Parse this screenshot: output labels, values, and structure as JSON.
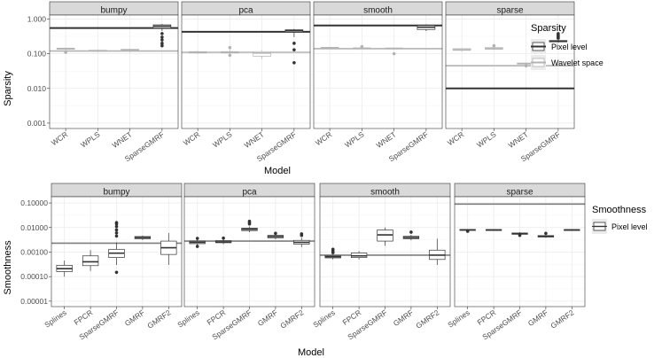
{
  "chart_data": [
    {
      "type": "box",
      "name": "sparsity",
      "ylabel": "Sparsity",
      "xlabel": "Model",
      "yscale": "log10",
      "ylim": [
        0.0007,
        1.3
      ],
      "yticks": [
        0.001,
        0.01,
        0.1,
        1
      ],
      "ytick_labels": [
        "0.001",
        "0.010",
        "0.100",
        "1.000"
      ],
      "categories": [
        "WCR",
        "WPLS",
        "WNET",
        "SparseGMRF"
      ],
      "legend": {
        "title": "Sparsity",
        "entries": [
          {
            "label": "Pixel level",
            "color": "#333333"
          },
          {
            "label": "Wavelet space",
            "color": "#b3b3b3"
          }
        ]
      },
      "panels": [
        {
          "title": "bumpy",
          "ref_lines": {
            "pixel": 0.55,
            "wavelet": 0.12
          },
          "boxes": [
            {
              "q1": 0.135,
              "median": 0.14,
              "q3": 0.145,
              "lo": 0.13,
              "hi": 0.15,
              "outliers": [
                0.11,
                0.115
              ],
              "style": "wavelet"
            },
            {
              "q1": 0.118,
              "median": 0.122,
              "q3": 0.126,
              "lo": 0.112,
              "hi": 0.13,
              "outliers": [],
              "style": "wavelet"
            },
            {
              "q1": 0.12,
              "median": 0.125,
              "q3": 0.135,
              "lo": 0.11,
              "hi": 0.14,
              "outliers": [],
              "style": "wavelet"
            },
            {
              "q1": 0.55,
              "median": 0.62,
              "q3": 0.68,
              "lo": 0.45,
              "hi": 0.72,
              "outliers": [
                0.38,
                0.3,
                0.25,
                0.2,
                0.17
              ],
              "style": "pixel"
            }
          ]
        },
        {
          "title": "pca",
          "ref_lines": {
            "pixel": 0.43,
            "wavelet": 0.11
          },
          "boxes": [
            {
              "q1": 0.105,
              "median": 0.11,
              "q3": 0.115,
              "lo": 0.1,
              "hi": 0.12,
              "outliers": [],
              "style": "wavelet"
            },
            {
              "q1": 0.105,
              "median": 0.11,
              "q3": 0.115,
              "lo": 0.1,
              "hi": 0.13,
              "outliers": [
                0.15,
                0.09
              ],
              "style": "wavelet"
            },
            {
              "q1": 0.085,
              "median": 0.105,
              "q3": 0.115,
              "lo": 0.07,
              "hi": 0.125,
              "outliers": [],
              "style": "wavelet"
            },
            {
              "q1": 0.42,
              "median": 0.46,
              "q3": 0.49,
              "lo": 0.3,
              "hi": 0.52,
              "outliers": [
                0.2,
                0.13,
                0.055
              ],
              "style": "pixel"
            }
          ]
        },
        {
          "title": "smooth",
          "ref_lines": {
            "pixel": 0.65,
            "wavelet": 0.14
          },
          "boxes": [
            {
              "q1": 0.145,
              "median": 0.148,
              "q3": 0.152,
              "lo": 0.14,
              "hi": 0.155,
              "outliers": [],
              "style": "wavelet"
            },
            {
              "q1": 0.14,
              "median": 0.143,
              "q3": 0.147,
              "lo": 0.135,
              "hi": 0.15,
              "outliers": [
                0.16
              ],
              "style": "wavelet"
            },
            {
              "q1": 0.138,
              "median": 0.142,
              "q3": 0.146,
              "lo": 0.13,
              "hi": 0.15,
              "outliers": [
                0.1
              ],
              "style": "wavelet"
            },
            {
              "q1": 0.5,
              "median": 0.58,
              "q3": 0.65,
              "lo": 0.45,
              "hi": 0.7,
              "outliers": [],
              "style": "pixel"
            }
          ]
        },
        {
          "title": "sparse",
          "ref_lines": {
            "pixel": 0.01,
            "wavelet": 0.045
          },
          "boxes": [
            {
              "q1": 0.125,
              "median": 0.13,
              "q3": 0.14,
              "lo": 0.115,
              "hi": 0.145,
              "outliers": [],
              "style": "wavelet"
            },
            {
              "q1": 0.135,
              "median": 0.14,
              "q3": 0.15,
              "lo": 0.13,
              "hi": 0.155,
              "outliers": [
                0.17
              ],
              "style": "wavelet"
            },
            {
              "q1": 0.05,
              "median": 0.052,
              "q3": 0.054,
              "lo": 0.048,
              "hi": 0.056,
              "outliers": [
                0.045
              ],
              "style": "wavelet"
            },
            {
              "q1": 0.22,
              "median": 0.23,
              "q3": 0.24,
              "lo": 0.21,
              "hi": 0.25,
              "outliers": [
                0.28,
                0.3,
                0.32,
                0.35,
                0.38
              ],
              "style": "pixel"
            }
          ]
        }
      ]
    },
    {
      "type": "box",
      "name": "smoothness",
      "ylabel": "Smoothness",
      "xlabel": "Model",
      "yscale": "log10",
      "ylim": [
        6e-06,
        0.18
      ],
      "yticks": [
        1e-05,
        0.0001,
        0.001,
        0.01,
        0.1
      ],
      "ytick_labels": [
        "0.00001",
        "0.00010",
        "0.00100",
        "0.01000",
        "0.10000"
      ],
      "categories": [
        "Splines",
        "FPCR",
        "SparseGMRF",
        "GMRF",
        "GMRF2"
      ],
      "legend": {
        "title": "Smoothness",
        "entries": [
          {
            "label": "Pixel level",
            "color": "#ffffff"
          }
        ]
      },
      "panels": [
        {
          "title": "bumpy",
          "ref_line": 0.0023,
          "boxes": [
            {
              "q1": 0.00016,
              "median": 0.00021,
              "q3": 0.00029,
              "lo": 0.0001,
              "hi": 0.00045,
              "outliers": []
            },
            {
              "q1": 0.00028,
              "median": 0.0004,
              "q3": 0.0007,
              "lo": 0.00017,
              "hi": 0.0012,
              "outliers": []
            },
            {
              "q1": 0.0006,
              "median": 0.0009,
              "q3": 0.0013,
              "lo": 0.0003,
              "hi": 0.0025,
              "outliers": [
                0.0045,
                0.006,
                0.008,
                0.011,
                0.014,
                0.016,
                0.00015
              ]
            },
            {
              "q1": 0.0035,
              "median": 0.0039,
              "q3": 0.0043,
              "lo": 0.0031,
              "hi": 0.0047,
              "outliers": []
            },
            {
              "q1": 0.0008,
              "median": 0.0015,
              "q3": 0.0028,
              "lo": 0.0003,
              "hi": 0.006,
              "outliers": []
            }
          ]
        },
        {
          "title": "pca",
          "ref_line": 0.0028,
          "boxes": [
            {
              "q1": 0.0022,
              "median": 0.0025,
              "q3": 0.0028,
              "lo": 0.0019,
              "hi": 0.0032,
              "outliers": [
                0.0036,
                0.0017
              ]
            },
            {
              "q1": 0.0024,
              "median": 0.0026,
              "q3": 0.0029,
              "lo": 0.0021,
              "hi": 0.0032,
              "outliers": [
                0.0037
              ]
            },
            {
              "q1": 0.0075,
              "median": 0.0085,
              "q3": 0.0095,
              "lo": 0.0065,
              "hi": 0.011,
              "outliers": [
                0.014,
                0.016,
                0.018
              ]
            },
            {
              "q1": 0.0038,
              "median": 0.0043,
              "q3": 0.0048,
              "lo": 0.0033,
              "hi": 0.0054,
              "outliers": [
                0.0058
              ]
            },
            {
              "q1": 0.0021,
              "median": 0.0025,
              "q3": 0.003,
              "lo": 0.0016,
              "hi": 0.0038,
              "outliers": [
                0.0048,
                0.0055
              ]
            }
          ]
        },
        {
          "title": "smooth",
          "ref_line": 0.00075,
          "boxes": [
            {
              "q1": 0.00058,
              "median": 0.00065,
              "q3": 0.00072,
              "lo": 0.0005,
              "hi": 0.0008,
              "outliers": [
                0.00095,
                0.0011,
                0.0013
              ]
            },
            {
              "q1": 0.0006,
              "median": 0.0007,
              "q3": 0.00092,
              "lo": 0.0005,
              "hi": 0.0011,
              "outliers": []
            },
            {
              "q1": 0.0028,
              "median": 0.005,
              "q3": 0.008,
              "lo": 0.0018,
              "hi": 0.01,
              "outliers": []
            },
            {
              "q1": 0.0035,
              "median": 0.0039,
              "q3": 0.0044,
              "lo": 0.003,
              "hi": 0.005,
              "outliers": [
                0.0065
              ]
            },
            {
              "q1": 0.0005,
              "median": 0.00075,
              "q3": 0.0012,
              "lo": 0.0003,
              "hi": 0.0035,
              "outliers": []
            }
          ]
        },
        {
          "title": "sparse",
          "ref_line": 0.09,
          "boxes": [
            {
              "q1": 0.0078,
              "median": 0.008,
              "q3": 0.0083,
              "lo": 0.0074,
              "hi": 0.0087,
              "outliers": [
                0.007
              ]
            },
            {
              "q1": 0.0078,
              "median": 0.008,
              "q3": 0.0082,
              "lo": 0.0076,
              "hi": 0.0085,
              "outliers": []
            },
            {
              "q1": 0.0053,
              "median": 0.0056,
              "q3": 0.006,
              "lo": 0.005,
              "hi": 0.0065,
              "outliers": [
                0.0048
              ]
            },
            {
              "q1": 0.0041,
              "median": 0.0044,
              "q3": 0.0047,
              "lo": 0.0038,
              "hi": 0.005,
              "outliers": [
                0.0058
              ]
            },
            {
              "q1": 0.0079,
              "median": 0.008,
              "q3": 0.0082,
              "lo": 0.0077,
              "hi": 0.0084,
              "outliers": []
            }
          ]
        }
      ]
    }
  ]
}
